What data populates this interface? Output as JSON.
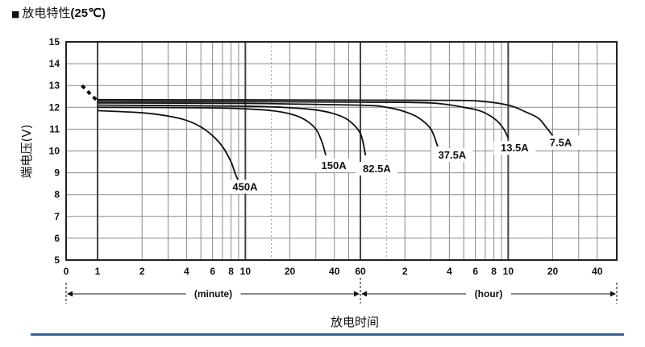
{
  "header": {
    "square": "■",
    "title_cn": "放电特性",
    "title_temp": "(25℃)"
  },
  "chart_data": {
    "type": "line",
    "title": "■ 放电特性(25℃)",
    "xlabel": "放电时间",
    "ylabel": "端电压(V)",
    "ylim": [
      5,
      15
    ],
    "y_ticks": [
      "5",
      "6",
      "7",
      "8",
      "9",
      "10",
      "11",
      "12",
      "13",
      "14",
      "15"
    ],
    "x_scale": "log",
    "x_ticks_minutes": [
      "0",
      "1",
      "2",
      "4",
      "6",
      "8",
      "10",
      "20",
      "40",
      "60"
    ],
    "x_ticks_hours": [
      "2",
      "4",
      "6",
      "8",
      "10",
      "20",
      "40"
    ],
    "range_labels": {
      "minute": "(minute)",
      "hour": "(hour)"
    },
    "initial_voltage": {
      "x_min": [
        0.5,
        0.65,
        0.8,
        1.0
      ],
      "y": [
        13.0,
        12.8,
        12.55,
        12.3
      ]
    },
    "series": [
      {
        "name": "450A",
        "x_min": [
          1,
          2,
          3,
          4,
          5,
          6,
          7,
          8,
          8.5,
          9.0
        ],
        "y": [
          11.85,
          11.75,
          11.6,
          11.4,
          11.1,
          10.7,
          10.2,
          9.5,
          9.0,
          8.6
        ]
      },
      {
        "name": "150A",
        "x_min": [
          1,
          5,
          10,
          15,
          20,
          25,
          30,
          33,
          35
        ],
        "y": [
          12.0,
          11.98,
          11.93,
          11.85,
          11.7,
          11.45,
          11.0,
          10.4,
          9.8
        ]
      },
      {
        "name": "82.5A",
        "x_min": [
          1,
          10,
          20,
          30,
          40,
          50,
          60,
          65
        ],
        "y": [
          12.1,
          12.05,
          11.98,
          11.88,
          11.7,
          11.4,
          10.8,
          9.8
        ]
      },
      {
        "name": "37.5A",
        "x_min": [
          1,
          10,
          60,
          90,
          120,
          150,
          180,
          200
        ],
        "y": [
          12.2,
          12.18,
          12.1,
          12.0,
          11.8,
          11.5,
          11.0,
          10.2
        ]
      },
      {
        "name": "13.5A",
        "x_min": [
          1,
          10,
          60,
          180,
          300,
          400,
          500,
          560,
          600
        ],
        "y": [
          12.28,
          12.26,
          12.24,
          12.2,
          12.0,
          11.8,
          11.4,
          11.0,
          10.6
        ]
      },
      {
        "name": "7.5A",
        "x_min": [
          1,
          10,
          60,
          180,
          360,
          600,
          780,
          960,
          1080,
          1200
        ],
        "y": [
          12.35,
          12.34,
          12.33,
          12.32,
          12.3,
          12.1,
          11.8,
          11.5,
          11.1,
          10.7
        ]
      }
    ],
    "grid": true,
    "legend": "inline labels"
  }
}
